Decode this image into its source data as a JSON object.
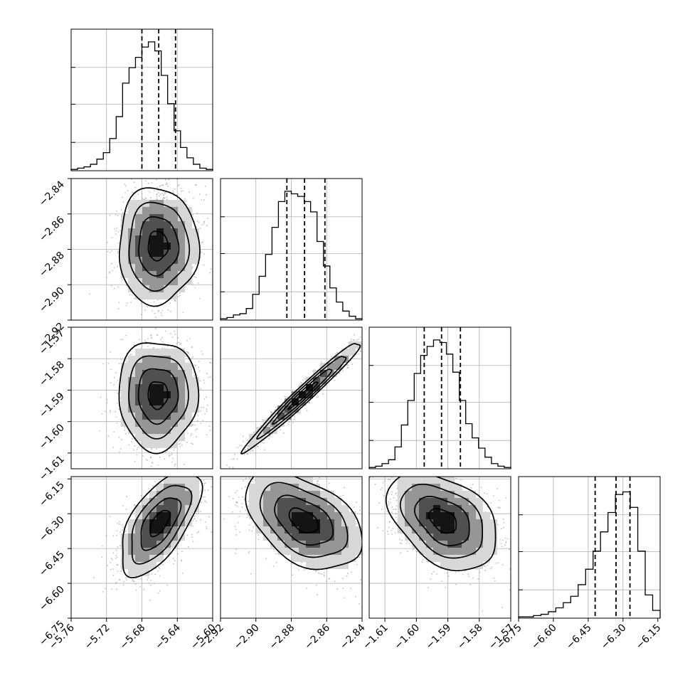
{
  "chart_data": {
    "type": "corner",
    "grid": true,
    "parameters": [
      {
        "range": [
          -5.76,
          -5.6
        ],
        "ticks": [
          "−5.76",
          "−5.72",
          "−5.68",
          "−5.64",
          "−5.60"
        ],
        "tick_values": [
          -5.76,
          -5.72,
          -5.68,
          -5.64,
          -5.6
        ],
        "quantiles": [
          -5.68,
          -5.661,
          -5.642
        ],
        "hist_values": [
          0.01,
          0.02,
          0.03,
          0.05,
          0.09,
          0.14,
          0.25,
          0.42,
          0.68,
          0.8,
          0.88,
          0.96,
          1.0,
          0.93,
          0.74,
          0.52,
          0.31,
          0.18,
          0.1,
          0.05,
          0.02,
          0.01
        ]
      },
      {
        "range": [
          -2.92,
          -2.84
        ],
        "ticks": [
          "−2.92",
          "−2.90",
          "−2.88",
          "−2.86",
          "−2.84"
        ],
        "tick_values": [
          -2.92,
          -2.9,
          -2.88,
          -2.86,
          -2.84
        ],
        "quantiles": [
          -2.8825,
          -2.8725,
          -2.861
        ],
        "hist_values": [
          0.01,
          0.02,
          0.04,
          0.05,
          0.09,
          0.2,
          0.34,
          0.51,
          0.72,
          0.92,
          1.0,
          0.98,
          0.96,
          0.92,
          0.84,
          0.61,
          0.42,
          0.25,
          0.14,
          0.07,
          0.03,
          0.01
        ]
      },
      {
        "range": [
          -1.615,
          -1.57
        ],
        "ticks": [
          "−1.61",
          "−1.60",
          "−1.59",
          "−1.58",
          "−1.57"
        ],
        "tick_values": [
          -1.61,
          -1.6,
          -1.59,
          -1.58,
          -1.57
        ],
        "quantiles": [
          -1.5975,
          -1.592,
          -1.586
        ],
        "hist_values": [
          0.01,
          0.02,
          0.04,
          0.07,
          0.17,
          0.34,
          0.53,
          0.74,
          0.88,
          0.95,
          1.0,
          0.98,
          0.89,
          0.75,
          0.53,
          0.35,
          0.24,
          0.16,
          0.09,
          0.04,
          0.02,
          0.01
        ]
      },
      {
        "range": [
          -6.75,
          -6.14
        ],
        "ticks": [
          "−6.75",
          "−6.60",
          "−6.45",
          "−6.30",
          "−6.15"
        ],
        "tick_values": [
          -6.75,
          -6.6,
          -6.45,
          -6.3,
          -6.15
        ],
        "quantiles": [
          -6.42,
          -6.33,
          -6.27
        ],
        "hist_values": [
          0.01,
          0.01,
          0.02,
          0.03,
          0.05,
          0.08,
          0.12,
          0.17,
          0.26,
          0.38,
          0.52,
          0.67,
          0.82,
          0.96,
          0.98,
          0.86,
          0.52,
          0.18,
          0.06
        ]
      }
    ],
    "ylabels_rows": [
      [
        "−2.84",
        "−2.86",
        "−2.88",
        "−2.90",
        "−2.92"
      ],
      [
        "−1.57",
        "−1.58",
        "−1.59",
        "−1.60",
        "−1.61"
      ],
      [
        "−6.15",
        "−6.30",
        "−6.45",
        "−6.60",
        "−6.75"
      ]
    ],
    "panels_2d": [
      {
        "row": 1,
        "col": 0,
        "center": [
          -5.662,
          -2.878
        ],
        "sd": [
          0.015,
          0.011
        ],
        "rho": 0.0
      },
      {
        "row": 2,
        "col": 0,
        "center": [
          -5.662,
          -1.5915
        ],
        "sd": [
          0.015,
          0.0058
        ],
        "rho": 0.0
      },
      {
        "row": 2,
        "col": 1,
        "center": [
          -2.873,
          -1.5915
        ],
        "sd": [
          0.011,
          0.0058
        ],
        "rho": 0.98
      },
      {
        "row": 3,
        "col": 0,
        "center": [
          -5.66,
          -6.34
        ],
        "sd": [
          0.015,
          0.075
        ],
        "rho": 0.62
      },
      {
        "row": 3,
        "col": 1,
        "center": [
          -2.873,
          -6.33
        ],
        "sd": [
          0.011,
          0.07
        ],
        "rho": -0.45
      },
      {
        "row": 3,
        "col": 2,
        "center": [
          -1.5915,
          -6.33
        ],
        "sd": [
          0.0058,
          0.07
        ],
        "rho": -0.4
      }
    ]
  }
}
